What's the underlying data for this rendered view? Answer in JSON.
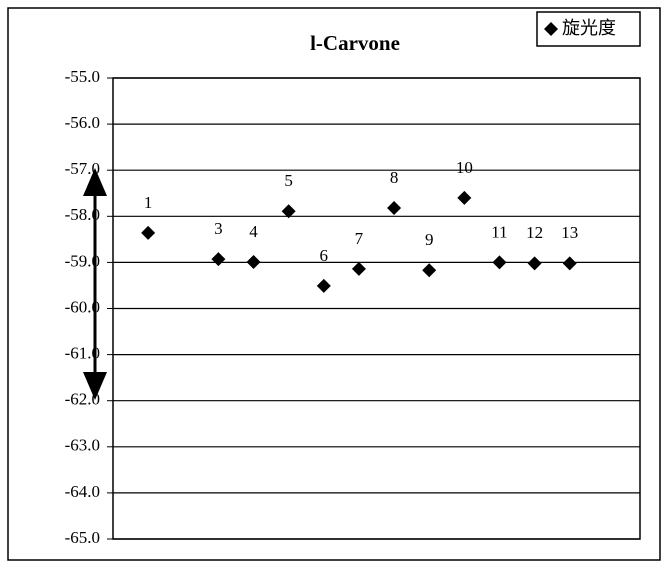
{
  "chart_data": {
    "type": "scatter",
    "title": "l-Carvone",
    "x": [
      1,
      3,
      4,
      5,
      6,
      7,
      8,
      9,
      10,
      11,
      12,
      13
    ],
    "series": [
      {
        "name": "旋光度",
        "color": "#000000",
        "values": [
          -58.36,
          -58.93,
          -58.99,
          -57.89,
          -59.51,
          -59.14,
          -57.82,
          -59.17,
          -57.6,
          -59.0,
          -59.02,
          -59.02
        ]
      }
    ],
    "xlim": [
      0,
      15
    ],
    "ylim": [
      -65,
      -55
    ],
    "yticks": [
      {
        "value": -55,
        "label": "-55.0"
      },
      {
        "value": -56,
        "label": "-56.0"
      },
      {
        "value": -57,
        "label": "-57.0"
      },
      {
        "value": -58,
        "label": "-58.0"
      },
      {
        "value": -59,
        "label": "-59.0"
      },
      {
        "value": -60,
        "label": "-60.0"
      },
      {
        "value": -61,
        "label": "-61.0"
      },
      {
        "value": -62,
        "label": "-62.0"
      },
      {
        "value": -63,
        "label": "-63.0"
      },
      {
        "value": -64,
        "label": "-64.0"
      },
      {
        "value": -65,
        "label": "-65.0"
      }
    ],
    "grid": true,
    "legend": "top-right"
  }
}
